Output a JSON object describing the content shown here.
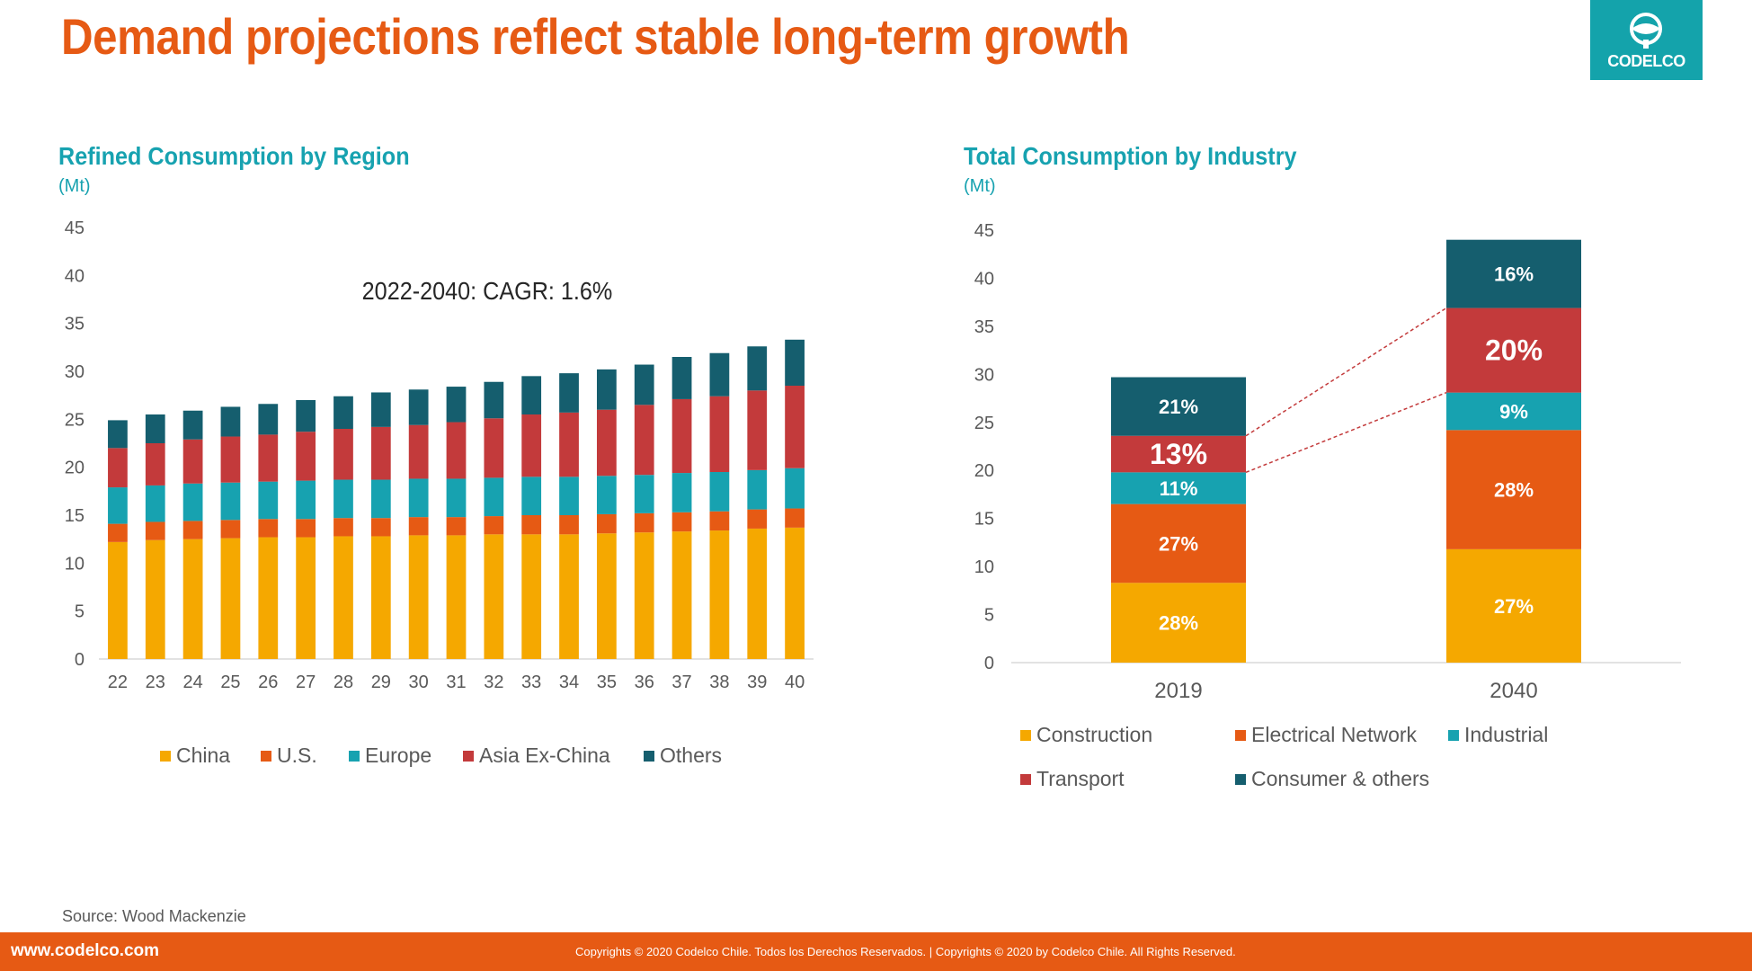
{
  "page": {
    "title": "Demand projections reflect stable long-term growth",
    "logo_text": "CODELCO",
    "source": "Source: Wood Mackenzie",
    "footer_url": "www.codelco.com",
    "footer_copyright": "Copyrights © 2020 Codelco Chile. Todos los Derechos Reservados. | Copyrights © 2020 by Codelco Chile.  All Rights Reserved.",
    "colors": {
      "title": "#E65A14",
      "accent": "#17A2B0",
      "footer": "#E65A14"
    }
  },
  "chart_data": [
    {
      "type": "bar",
      "stacked": true,
      "title": "Refined Consumption by Region",
      "unit": "(Mt)",
      "annotation": "2022-2040: CAGR: 1.6%",
      "ylim": [
        0,
        45
      ],
      "yticks": [
        0,
        5,
        10,
        15,
        20,
        25,
        30,
        35,
        40,
        45
      ],
      "grid": false,
      "legend_position": "bottom",
      "categories": [
        "22",
        "23",
        "24",
        "25",
        "26",
        "27",
        "28",
        "29",
        "30",
        "31",
        "32",
        "33",
        "34",
        "35",
        "36",
        "37",
        "38",
        "39",
        "40"
      ],
      "series": [
        {
          "name": "China",
          "color": "#F5A800",
          "values": [
            12.2,
            12.4,
            12.5,
            12.6,
            12.7,
            12.7,
            12.8,
            12.8,
            12.9,
            12.9,
            13.0,
            13.0,
            13.0,
            13.1,
            13.2,
            13.3,
            13.4,
            13.6,
            13.7
          ]
        },
        {
          "name": "U.S.",
          "color": "#E65A14",
          "values": [
            1.9,
            1.9,
            1.9,
            1.9,
            1.9,
            1.9,
            1.9,
            1.9,
            1.9,
            1.9,
            1.9,
            2.0,
            2.0,
            2.0,
            2.0,
            2.0,
            2.0,
            2.0,
            2.0
          ]
        },
        {
          "name": "Europe",
          "color": "#17A2B0",
          "values": [
            3.8,
            3.8,
            3.9,
            3.9,
            3.9,
            4.0,
            4.0,
            4.0,
            4.0,
            4.0,
            4.0,
            4.0,
            4.0,
            4.0,
            4.0,
            4.1,
            4.1,
            4.1,
            4.2
          ]
        },
        {
          "name": "Asia Ex-China",
          "color": "#C33A3B",
          "values": [
            4.1,
            4.4,
            4.6,
            4.8,
            4.9,
            5.1,
            5.3,
            5.5,
            5.6,
            5.9,
            6.2,
            6.5,
            6.7,
            6.9,
            7.3,
            7.7,
            7.9,
            8.3,
            8.6
          ]
        },
        {
          "name": "Others",
          "color": "#155E6E",
          "values": [
            2.9,
            3.0,
            3.0,
            3.1,
            3.2,
            3.3,
            3.4,
            3.6,
            3.7,
            3.7,
            3.8,
            4.0,
            4.1,
            4.2,
            4.2,
            4.4,
            4.5,
            4.6,
            4.8
          ]
        }
      ]
    },
    {
      "type": "bar",
      "stacked": true,
      "title": "Total Consumption by Industry",
      "unit": "(Mt)",
      "ylim": [
        0,
        45
      ],
      "yticks": [
        0,
        5,
        10,
        15,
        20,
        25,
        30,
        35,
        40,
        45
      ],
      "grid": false,
      "legend_position": "bottom",
      "categories": [
        "2019",
        "2040"
      ],
      "series": [
        {
          "name": "Construction",
          "color": "#F5A800",
          "values": [
            8.3,
            11.8
          ],
          "labels": [
            "28%",
            "27%"
          ]
        },
        {
          "name": "Electrical Network",
          "color": "#E65A14",
          "values": [
            8.2,
            12.4
          ],
          "labels": [
            "27%",
            "28%"
          ]
        },
        {
          "name": "Industrial",
          "color": "#17A2B0",
          "values": [
            3.3,
            3.9
          ],
          "labels": [
            "11%",
            "9%"
          ]
        },
        {
          "name": "Transport",
          "color": "#C33A3B",
          "values": [
            3.8,
            8.8
          ],
          "labels": [
            "13%",
            "20%"
          ]
        },
        {
          "name": "Consumer & others",
          "color": "#155E6E",
          "values": [
            6.1,
            7.1
          ],
          "labels": [
            "21%",
            "16%"
          ]
        }
      ]
    }
  ]
}
